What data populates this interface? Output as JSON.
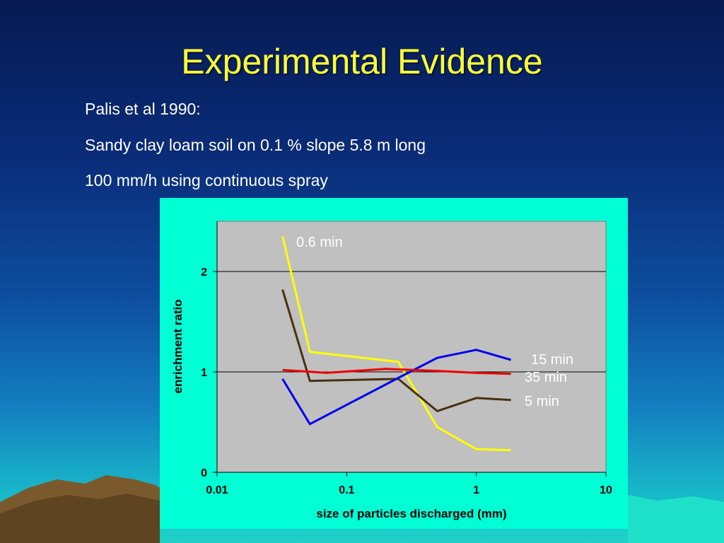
{
  "slide": {
    "title": "Experimental Evidence",
    "bullets": [
      "Palis et al 1990:",
      "Sandy clay loam soil on 0.1 % slope 5.8 m long",
      "100 mm/h using continuous spray"
    ]
  },
  "chart_data": {
    "type": "line",
    "title": "",
    "xlabel": "size of particles discharged (mm)",
    "ylabel": "enrichment ratio",
    "x_scale": "log",
    "xlim": [
      0.01,
      10
    ],
    "ylim": [
      0,
      2.5
    ],
    "x_ticks": [
      0.01,
      0.1,
      1,
      10
    ],
    "x_tick_labels": [
      "0.01",
      "0.1",
      "1",
      "10"
    ],
    "y_ticks": [
      0,
      1,
      2
    ],
    "y_tick_labels": [
      "0",
      "1",
      "2"
    ],
    "grid": "horizontal",
    "background": "#c0c0c0",
    "series": [
      {
        "name": "0.6 min",
        "color": "#ffff00",
        "x": [
          0.032,
          0.052,
          0.25,
          0.5,
          1.0,
          1.85
        ],
        "y": [
          2.35,
          1.2,
          1.1,
          0.45,
          0.23,
          0.22
        ]
      },
      {
        "name": "5 min",
        "color": "#4a3010",
        "x": [
          0.032,
          0.052,
          0.25,
          0.5,
          1.0,
          1.85
        ],
        "y": [
          1.82,
          0.91,
          0.93,
          0.61,
          0.74,
          0.72
        ]
      },
      {
        "name": "15 min",
        "color": "#0000ee",
        "x": [
          0.032,
          0.052,
          0.25,
          0.5,
          1.0,
          1.85
        ],
        "y": [
          0.93,
          0.48,
          0.94,
          1.14,
          1.22,
          1.12
        ]
      },
      {
        "name": "35 min",
        "color": "#ee0000",
        "x": [
          0.032,
          0.07,
          0.2,
          0.5,
          1.0,
          1.85
        ],
        "y": [
          1.02,
          0.99,
          1.03,
          1.01,
          0.99,
          0.98
        ]
      }
    ]
  }
}
